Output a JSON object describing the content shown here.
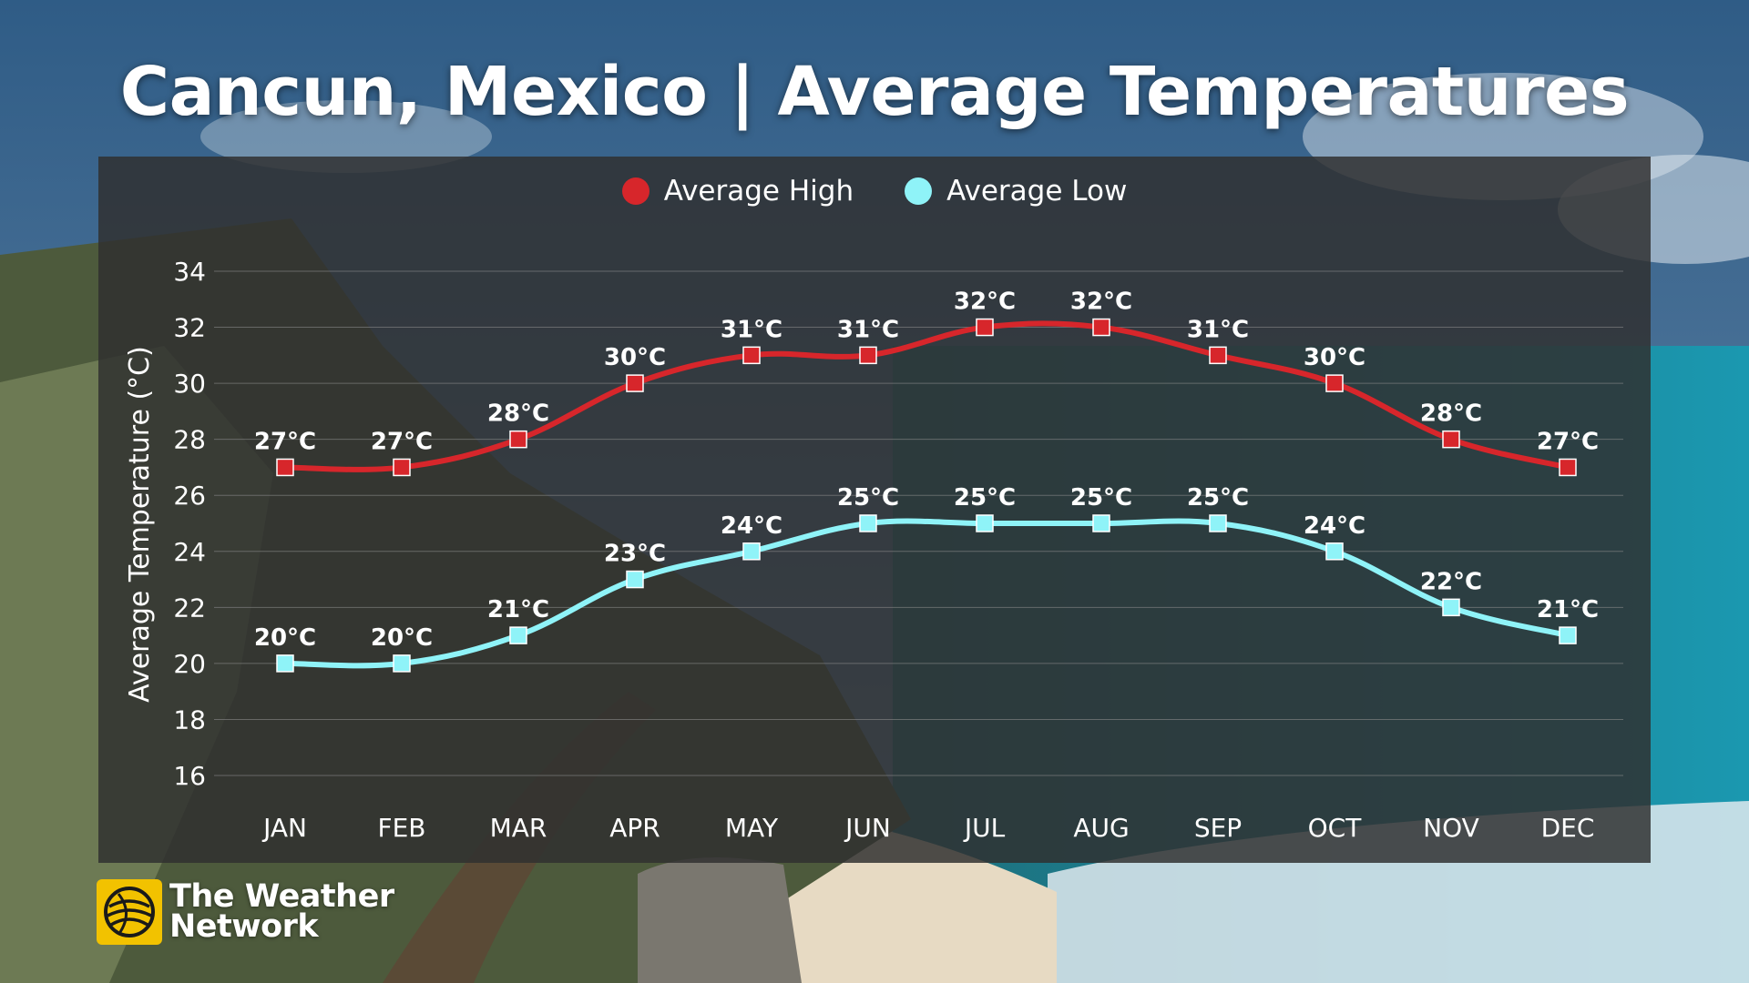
{
  "title": "Cancun, Mexico | Average Temperatures",
  "brand": {
    "line1": "The Weather",
    "line2": "Network"
  },
  "colors": {
    "high": "#d7262b",
    "low": "#8ff3f8",
    "brand_yellow": "#f2c200"
  },
  "chart_data": {
    "type": "line",
    "categories": [
      "JAN",
      "FEB",
      "MAR",
      "APR",
      "MAY",
      "JUN",
      "JUL",
      "AUG",
      "SEP",
      "OCT",
      "NOV",
      "DEC"
    ],
    "series": [
      {
        "name": "Average High",
        "values": [
          27,
          27,
          28,
          30,
          31,
          31,
          32,
          32,
          31,
          30,
          28,
          27
        ],
        "labels": [
          "27°C",
          "27°C",
          "28°C",
          "30°C",
          "31°C",
          "31°C",
          "32°C",
          "32°C",
          "31°C",
          "30°C",
          "28°C",
          "27°C"
        ]
      },
      {
        "name": "Average Low",
        "values": [
          20,
          20,
          21,
          23,
          24,
          25,
          25,
          25,
          25,
          24,
          22,
          21
        ],
        "labels": [
          "20°C",
          "20°C",
          "21°C",
          "23°C",
          "24°C",
          "25°C",
          "25°C",
          "25°C",
          "25°C",
          "24°C",
          "22°C",
          "21°C"
        ]
      }
    ],
    "ylabel": "Average Temperature (°C)",
    "xlabel": "",
    "ylim": [
      16,
      34
    ],
    "yticks": [
      34,
      32,
      30,
      28,
      26,
      24,
      22,
      20,
      18,
      16
    ],
    "grid": true,
    "legend": "top-center"
  }
}
